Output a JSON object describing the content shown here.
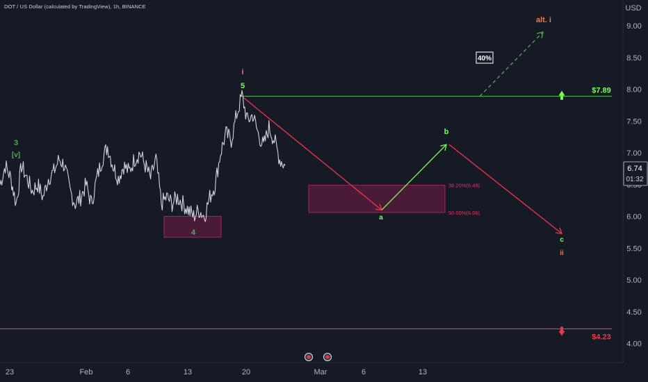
{
  "header": {
    "symbol_text": "DOT / US Dollar (calculated by TradingView), 1h, BINANCE"
  },
  "price_axis": {
    "currency": "USD",
    "ticks": [
      "9.00",
      "8.50",
      "8.00",
      "7.50",
      "7.00",
      "6.50",
      "6.00",
      "5.50",
      "5.00",
      "4.50",
      "4.00"
    ],
    "current_price": "6.74",
    "countdown": "01:32"
  },
  "time_axis": {
    "labels": [
      "23",
      "Feb",
      "6",
      "13",
      "20",
      "Mar",
      "6",
      "13"
    ]
  },
  "levels": {
    "upper_level_label": "$7.89",
    "lower_level_label": "$4.23"
  },
  "annotations": {
    "wave_3": "3",
    "wave_v": "[v]",
    "wave_4": "4",
    "wave_i": "i",
    "wave_5": "5",
    "wave_a": "a",
    "wave_b": "b",
    "wave_c": "c",
    "wave_ii": "ii",
    "alt_i": "alt. i",
    "probability": "40%",
    "fib_382": "38.20%(6.49)",
    "fib_50": "50.00%(6.06)"
  },
  "colors": {
    "background": "#161a25",
    "candles": "#d1d4dc",
    "green": "#4caf50",
    "bright_green": "#7cfc5a",
    "red": "#f23645",
    "orange": "#f2784b",
    "zone": "#5c1c3c",
    "zone_border": "#a02458",
    "fib_text": "#d2386f"
  },
  "chart_data": {
    "type": "line",
    "title": "DOT / US Dollar (calculated by TradingView), 1h, BINANCE",
    "ylabel": "USD",
    "ylim": [
      3.5,
      9.35
    ],
    "grid": false,
    "x_tick_labels": [
      "23",
      "Feb",
      "6",
      "13",
      "20",
      "Mar",
      "6",
      "13"
    ],
    "series": [
      {
        "values": [
          6.5,
          6.8,
          6.6,
          6.2,
          6.8,
          6.6,
          6.4,
          6.5,
          6.3,
          6.6,
          6.7,
          6.9,
          6.8,
          6.4,
          6.2,
          6.3,
          6.5,
          6.2,
          6.6,
          6.9,
          7.1,
          6.8,
          6.6,
          6.8,
          6.7,
          6.9,
          7.0,
          6.8,
          6.6,
          6.9,
          6.2,
          6.3,
          6.2,
          6.3,
          6.2,
          6.1,
          6.0,
          6.1,
          6.0,
          6.3,
          6.5,
          7.0,
          7.3,
          7.2,
          7.6,
          7.9,
          7.5,
          7.6,
          7.3,
          7.1,
          7.4,
          7.2,
          6.9,
          6.8
        ]
      }
    ],
    "horizontal_levels": [
      {
        "value": 7.89,
        "label": "$7.89"
      },
      {
        "value": 4.23,
        "label": "$4.23"
      }
    ],
    "fib_zone": {
      "top": 6.49,
      "bottom": 6.06,
      "labels": [
        "38.20%(6.49)",
        "50.00%(6.06)"
      ]
    },
    "wave_four_zone": {
      "top": 6.0,
      "bottom": 5.67
    },
    "projection": {
      "a": 6.1,
      "b": 7.13,
      "c": 5.73,
      "alt_i_target": 8.9
    }
  }
}
